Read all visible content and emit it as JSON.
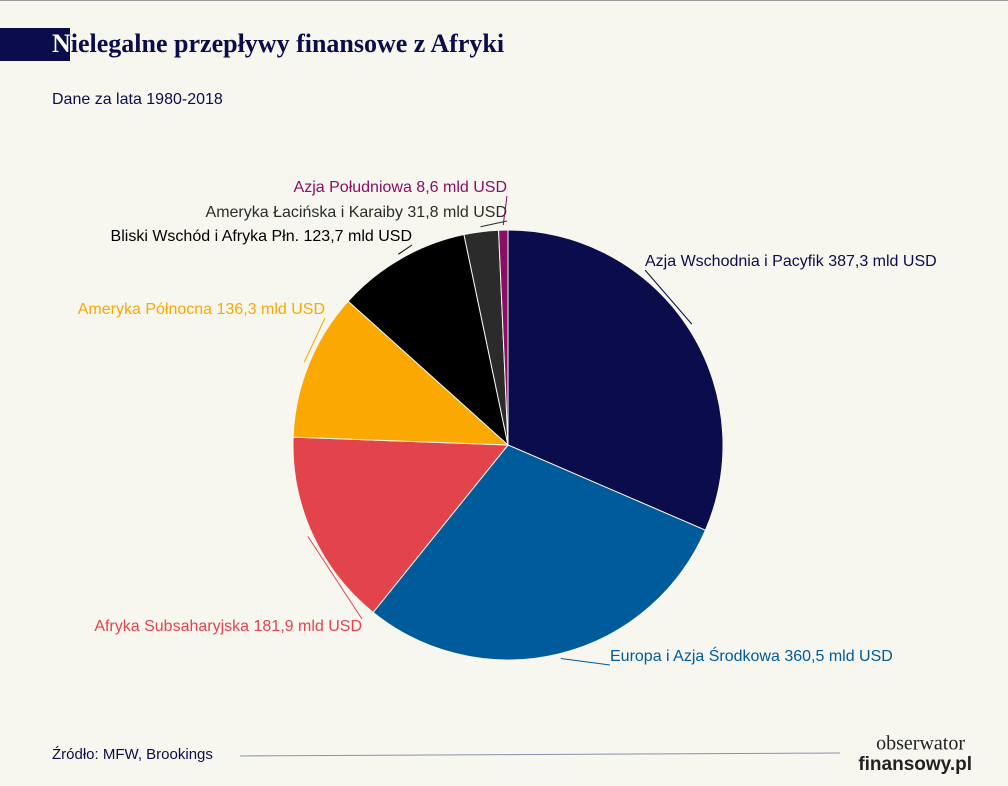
{
  "chart_data": {
    "type": "pie",
    "title": "Nielegalne przepływy finansowe z Afryki",
    "subtitle": "Dane za lata 1980-2018",
    "source": "Źródło: MFW, Brookings",
    "logo": [
      "obserwator",
      "finansowy.pl"
    ],
    "categories": [
      "Azja Wschodnia i Pacyfik",
      "Europa i Azja Środkowa",
      "Afryka Subsaharyjska",
      "Ameryka Północna",
      "Bliski Wschód i Afryka Płn.",
      "Ameryka Łacińska i Karaiby",
      "Azja Południowa"
    ],
    "values": [
      387.3,
      360.5,
      181.9,
      136.3,
      123.7,
      31.8,
      8.6
    ],
    "value_labels": [
      "387,3 mld USD",
      "360,5 mld USD",
      "181,9 mld USD",
      "136,3 mld USD",
      "123,7 mld USD",
      "31,8 mld USD",
      "8,6 mld USD"
    ],
    "colors": [
      "#0b0c4b",
      "#005b9b",
      "#e3444c",
      "#fba800",
      "#000000",
      "#2b2b2b",
      "#8a0e62"
    ],
    "label_colors": [
      "#0b0c4b",
      "#005b9b",
      "#e3444c",
      "#fba800",
      "#000000",
      "#2b2b2b",
      "#8a0e62"
    ]
  }
}
